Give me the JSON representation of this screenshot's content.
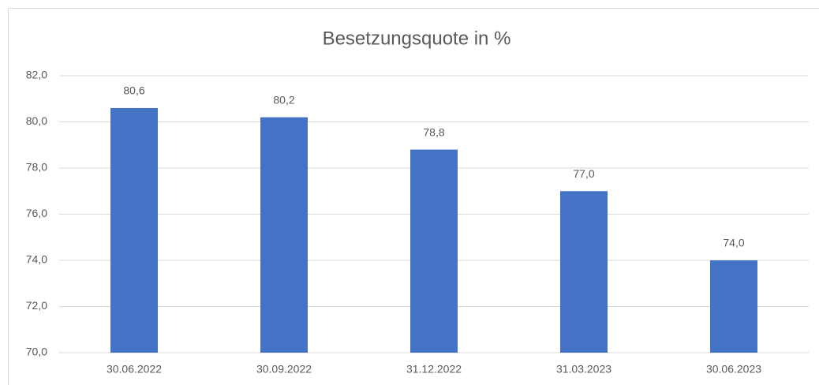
{
  "chart_data": {
    "type": "bar",
    "title": "Besetzungsquote in %",
    "categories": [
      "30.06.2022",
      "30.09.2022",
      "31.12.2022",
      "31.03.2023",
      "30.06.2023"
    ],
    "values": [
      80.6,
      80.2,
      78.8,
      77.0,
      74.0
    ],
    "value_labels": [
      "80,6",
      "80,2",
      "78,8",
      "77,0",
      "74,0"
    ],
    "color": "#4472c4",
    "ylim": [
      70,
      82
    ],
    "yticks": [
      {
        "value": 70,
        "label": "70,0"
      },
      {
        "value": 72,
        "label": "72,0"
      },
      {
        "value": 74,
        "label": "74,0"
      },
      {
        "value": 76,
        "label": "76,0"
      },
      {
        "value": 78,
        "label": "78,0"
      },
      {
        "value": 80,
        "label": "80,0"
      },
      {
        "value": 82,
        "label": "82,0"
      }
    ],
    "grid": true
  }
}
